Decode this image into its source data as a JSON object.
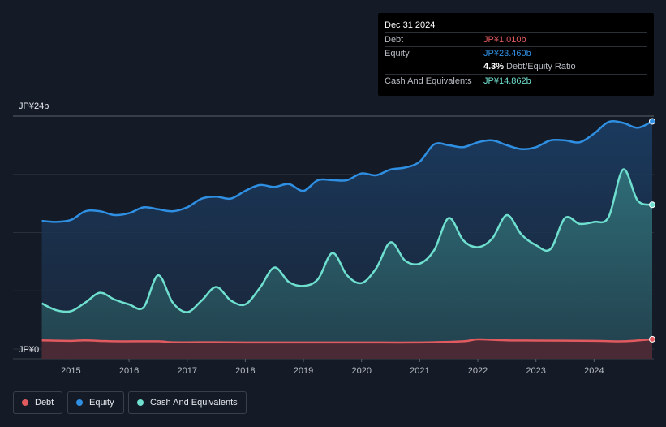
{
  "tooltip": {
    "date": "Dec 31 2024",
    "debt_label": "Debt",
    "debt_value": "JP¥1.010b",
    "equity_label": "Equity",
    "equity_value": "JP¥23.460b",
    "ratio_value": "4.3%",
    "ratio_label": "Debt/Equity Ratio",
    "cash_label": "Cash And Equivalents",
    "cash_value": "JP¥14.862b"
  },
  "legend": [
    {
      "label": "Debt",
      "color": "#e05a5f"
    },
    {
      "label": "Equity",
      "color": "#2f8fe3"
    },
    {
      "label": "Cash And Equivalents",
      "color": "#6fe0cf"
    }
  ],
  "chart_data": {
    "type": "area",
    "y_top_label": "JP¥24b",
    "y_bottom_label": "JP¥0",
    "ylim": [
      0,
      24
    ],
    "xlim": [
      2014.45,
      2025.0
    ],
    "x_ticks": [
      "2015",
      "2016",
      "2017",
      "2018",
      "2019",
      "2020",
      "2021",
      "2022",
      "2023",
      "2024"
    ],
    "series": [
      {
        "name": "Debt",
        "color": "#e05a5f",
        "points": [
          [
            2014.5,
            0.9
          ],
          [
            2015.0,
            0.85
          ],
          [
            2015.25,
            0.9
          ],
          [
            2015.75,
            0.8
          ],
          [
            2016.5,
            0.8
          ],
          [
            2016.75,
            0.7
          ],
          [
            2017.5,
            0.7
          ],
          [
            2018.0,
            0.68
          ],
          [
            2019.0,
            0.68
          ],
          [
            2020.0,
            0.68
          ],
          [
            2021.0,
            0.68
          ],
          [
            2021.75,
            0.8
          ],
          [
            2022.0,
            1.0
          ],
          [
            2022.5,
            0.9
          ],
          [
            2023.0,
            0.88
          ],
          [
            2024.0,
            0.85
          ],
          [
            2024.5,
            0.8
          ],
          [
            2025.0,
            1.01
          ]
        ]
      },
      {
        "name": "Equity",
        "color": "#2f8fe3",
        "points": [
          [
            2014.5,
            13.2
          ],
          [
            2014.75,
            13.1
          ],
          [
            2015.0,
            13.3
          ],
          [
            2015.25,
            14.2
          ],
          [
            2015.5,
            14.2
          ],
          [
            2015.75,
            13.8
          ],
          [
            2016.0,
            14.0
          ],
          [
            2016.25,
            14.6
          ],
          [
            2016.5,
            14.4
          ],
          [
            2016.75,
            14.2
          ],
          [
            2017.0,
            14.6
          ],
          [
            2017.25,
            15.5
          ],
          [
            2017.5,
            15.7
          ],
          [
            2017.75,
            15.5
          ],
          [
            2018.0,
            16.3
          ],
          [
            2018.25,
            16.9
          ],
          [
            2018.5,
            16.7
          ],
          [
            2018.75,
            17.0
          ],
          [
            2019.0,
            16.3
          ],
          [
            2019.25,
            17.4
          ],
          [
            2019.5,
            17.4
          ],
          [
            2019.75,
            17.4
          ],
          [
            2020.0,
            18.1
          ],
          [
            2020.25,
            17.9
          ],
          [
            2020.5,
            18.5
          ],
          [
            2020.75,
            18.7
          ],
          [
            2021.0,
            19.3
          ],
          [
            2021.25,
            21.1
          ],
          [
            2021.5,
            21.0
          ],
          [
            2021.75,
            20.8
          ],
          [
            2022.0,
            21.3
          ],
          [
            2022.25,
            21.5
          ],
          [
            2022.5,
            21.0
          ],
          [
            2022.75,
            20.6
          ],
          [
            2023.0,
            20.8
          ],
          [
            2023.25,
            21.5
          ],
          [
            2023.5,
            21.5
          ],
          [
            2023.75,
            21.3
          ],
          [
            2024.0,
            22.2
          ],
          [
            2024.25,
            23.4
          ],
          [
            2024.5,
            23.3
          ],
          [
            2024.75,
            22.8
          ],
          [
            2025.0,
            23.46
          ]
        ]
      },
      {
        "name": "Cash And Equivalents",
        "color": "#6fe0cf",
        "points": [
          [
            2014.5,
            4.7
          ],
          [
            2014.75,
            4.0
          ],
          [
            2015.0,
            3.9
          ],
          [
            2015.25,
            4.8
          ],
          [
            2015.5,
            5.8
          ],
          [
            2015.75,
            5.1
          ],
          [
            2016.0,
            4.6
          ],
          [
            2016.25,
            4.3
          ],
          [
            2016.5,
            7.6
          ],
          [
            2016.75,
            4.8
          ],
          [
            2017.0,
            3.8
          ],
          [
            2017.25,
            5.0
          ],
          [
            2017.5,
            6.4
          ],
          [
            2017.75,
            5.0
          ],
          [
            2018.0,
            4.6
          ],
          [
            2018.25,
            6.3
          ],
          [
            2018.5,
            8.4
          ],
          [
            2018.75,
            6.9
          ],
          [
            2019.0,
            6.5
          ],
          [
            2019.25,
            7.2
          ],
          [
            2019.5,
            9.9
          ],
          [
            2019.75,
            7.6
          ],
          [
            2020.0,
            6.8
          ],
          [
            2020.25,
            8.3
          ],
          [
            2020.5,
            11.0
          ],
          [
            2020.75,
            9.1
          ],
          [
            2021.0,
            8.8
          ],
          [
            2021.25,
            10.2
          ],
          [
            2021.5,
            13.5
          ],
          [
            2021.75,
            11.2
          ],
          [
            2022.0,
            10.5
          ],
          [
            2022.25,
            11.4
          ],
          [
            2022.5,
            13.8
          ],
          [
            2022.75,
            11.8
          ],
          [
            2023.0,
            10.7
          ],
          [
            2023.25,
            10.3
          ],
          [
            2023.5,
            13.5
          ],
          [
            2023.75,
            12.9
          ],
          [
            2024.0,
            13.1
          ],
          [
            2024.25,
            13.6
          ],
          [
            2024.5,
            18.5
          ],
          [
            2024.75,
            15.3
          ],
          [
            2025.0,
            14.862
          ]
        ]
      }
    ],
    "grid": true
  }
}
